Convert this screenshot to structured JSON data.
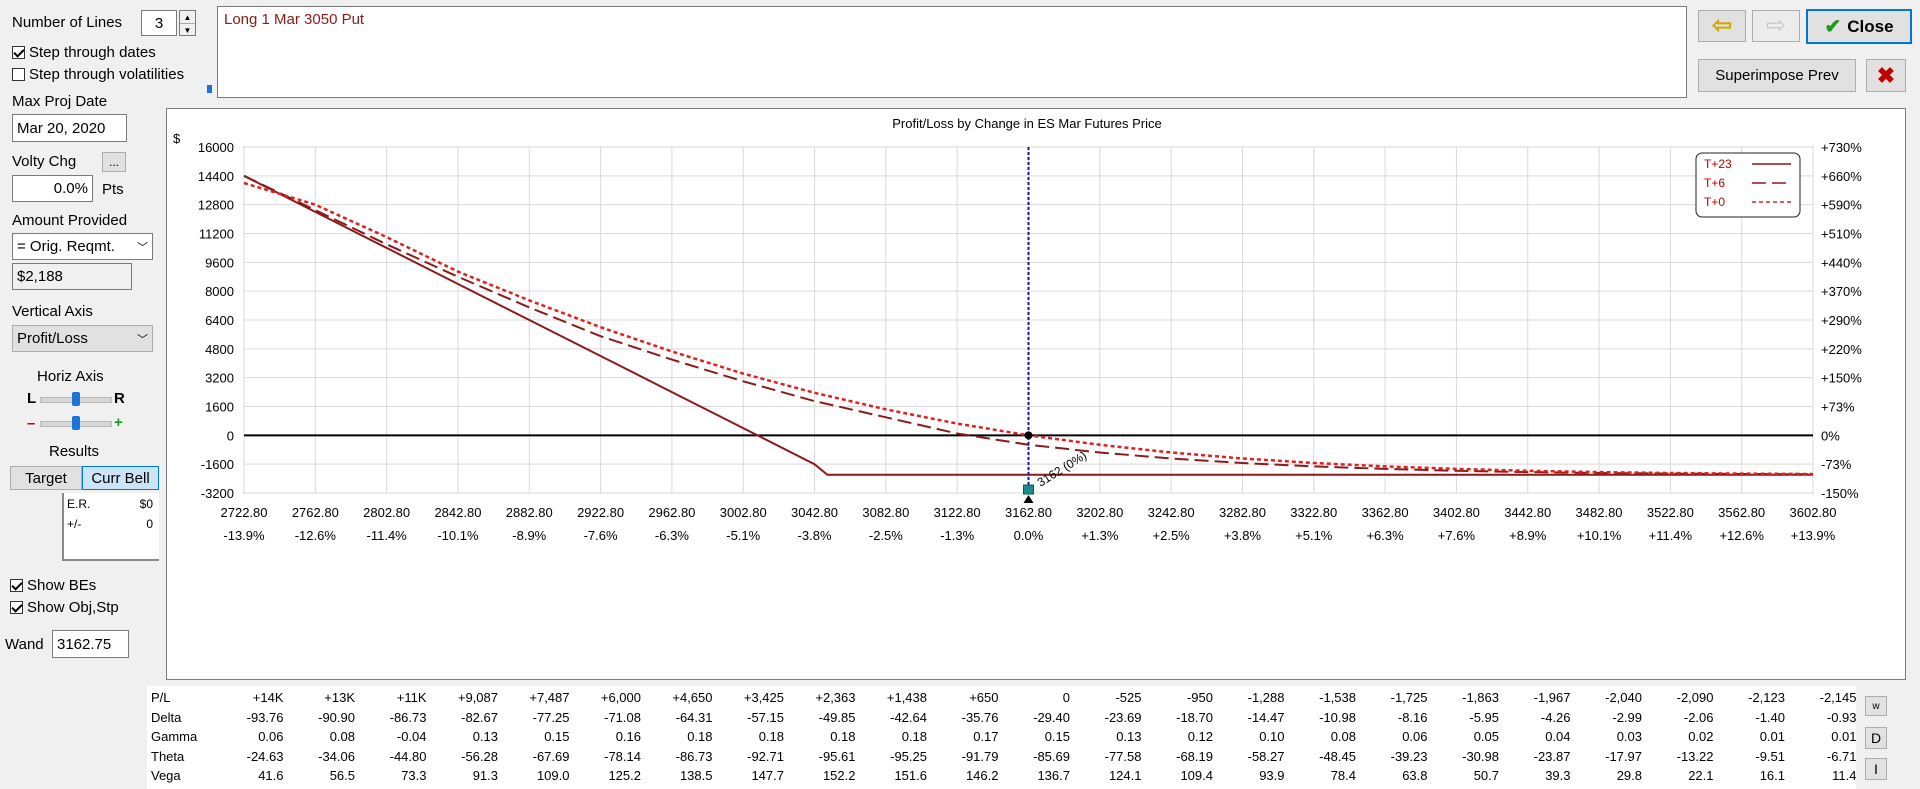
{
  "controls": {
    "number_of_lines_label": "Number of Lines",
    "number_of_lines_value": "3",
    "step_dates_label": "Step through dates",
    "step_dates_checked": true,
    "step_vols_label": "Step through volatilities",
    "step_vols_checked": false,
    "max_proj_date_label": "Max Proj Date",
    "max_proj_date_value": "Mar 20, 2020",
    "volty_chg_label": "Volty Chg",
    "volty_chg_button": "...",
    "volty_chg_value": "0.0%",
    "volty_chg_unit": "Pts",
    "amount_provided_label": "Amount Provided",
    "amount_provided_select": "= Orig. Reqmt.",
    "amount_value": "$2,188",
    "vertical_axis_label": "Vertical Axis",
    "vertical_axis_select": "Profit/Loss",
    "horiz_axis_label": "Horiz Axis",
    "horiz_l": "L",
    "horiz_r": "R",
    "horiz_minus": "–",
    "horiz_plus": "+",
    "horiz_slider_level": 0.5,
    "zoom_slider_level": 0.5,
    "results_label": "Results",
    "target_button": "Target",
    "curr_bell_button": "Curr Bell",
    "er_label": "E.R.",
    "er_value": "$0",
    "pm_label": "+/-",
    "pm_value": "0",
    "show_bes_label": "Show BEs",
    "show_bes_checked": true,
    "show_objstp_label": "Show Obj,Stp",
    "show_objstp_checked": true,
    "wand_label": "Wand",
    "wand_value": "3162.75"
  },
  "position_text": "Long 1 Mar 3050 Put",
  "toolbar": {
    "close_label": "Close",
    "superimpose_label": "Superimpose Prev"
  },
  "chart_data": {
    "type": "line",
    "title": "Profit/Loss by Change in ES Mar Futures Price",
    "ylabel": "$",
    "xlim": [
      2722.8,
      3602.8
    ],
    "ylim": [
      -3200,
      16000
    ],
    "x_ticks": [
      "2722.80",
      "2762.80",
      "2802.80",
      "2842.80",
      "2882.80",
      "2922.80",
      "2962.80",
      "3002.80",
      "3042.80",
      "3082.80",
      "3122.80",
      "3162.80",
      "3202.80",
      "3242.80",
      "3282.80",
      "3322.80",
      "3362.80",
      "3402.80",
      "3442.80",
      "3482.80",
      "3522.80",
      "3562.80",
      "3602.80"
    ],
    "x_pct_ticks": [
      "-13.9%",
      "-12.6%",
      "-11.4%",
      "-10.1%",
      "-8.9%",
      "-7.6%",
      "-6.3%",
      "-5.1%",
      "-3.8%",
      "-2.5%",
      "-1.3%",
      "0.0%",
      "+1.3%",
      "+2.5%",
      "+3.8%",
      "+5.1%",
      "+6.3%",
      "+7.6%",
      "+8.9%",
      "+10.1%",
      "+11.4%",
      "+12.6%",
      "+13.9%"
    ],
    "y_ticks": [
      16000,
      14400,
      12800,
      11200,
      9600,
      8000,
      6400,
      4800,
      3200,
      1600,
      0,
      -1600,
      -3200
    ],
    "y_right_ticks": [
      "+730%",
      "+660%",
      "+590%",
      "+510%",
      "+440%",
      "+370%",
      "+290%",
      "+220%",
      "+150%",
      "+73%",
      "0%",
      "-73%",
      "-150%"
    ],
    "grid": true,
    "legend_position": "top-right",
    "current_price": 3162.8,
    "marker_label": "3162 (0%)",
    "series": [
      {
        "name": "T+23",
        "style": "solid",
        "color": "#8b1a1a",
        "x": [
          2722.8,
          2762.8,
          2802.8,
          2842.8,
          2882.8,
          2922.8,
          2962.8,
          3002.8,
          3042.8,
          3050,
          3602.8
        ],
        "y": [
          14400,
          12400,
          10400,
          8400,
          6400,
          4400,
          2400,
          400,
          -1600,
          -2188,
          -2188
        ]
      },
      {
        "name": "T+6",
        "style": "dash",
        "color": "#8b1a1a",
        "x": [
          2722.8,
          2762.8,
          2802.8,
          2842.8,
          2882.8,
          2922.8,
          2962.8,
          3002.8,
          3042.8,
          3082.8,
          3122.8,
          3162.8,
          3202.8,
          3242.8,
          3282.8,
          3322.8,
          3362.8,
          3402.8,
          3442.8,
          3482.8,
          3522.8,
          3562.8,
          3602.8
        ],
        "y": [
          14400,
          12500,
          10600,
          8800,
          7100,
          5500,
          4200,
          3000,
          1900,
          1000,
          100,
          -525,
          -950,
          -1288,
          -1538,
          -1725,
          -1863,
          -1967,
          -2040,
          -2090,
          -2123,
          -2145,
          -2160
        ]
      },
      {
        "name": "T+0",
        "style": "dot",
        "color": "#e02020",
        "x": [
          2722.8,
          2762.8,
          2802.8,
          2842.8,
          2882.8,
          2922.8,
          2962.8,
          3002.8,
          3042.8,
          3082.8,
          3122.8,
          3162.8,
          3202.8,
          3242.8,
          3282.8,
          3322.8,
          3362.8,
          3402.8,
          3442.8,
          3482.8,
          3522.8,
          3562.8,
          3602.8
        ],
        "y": [
          14000,
          12800,
          11000,
          9087,
          7487,
          6000,
          4650,
          3425,
          2363,
          1438,
          650,
          0,
          -525,
          -950,
          -1288,
          -1538,
          -1725,
          -1863,
          -1967,
          -2040,
          -2090,
          -2123,
          -2145
        ]
      }
    ]
  },
  "legend": [
    {
      "name": "T+23",
      "sample": "———"
    },
    {
      "name": "T+6",
      "sample": "— — ·"
    },
    {
      "name": "T+0",
      "sample": "*- - - -"
    }
  ],
  "greeks_table": {
    "rows": [
      {
        "label": "P/L",
        "values": [
          "+14K",
          "+13K",
          "+11K",
          "+9,087",
          "+7,487",
          "+6,000",
          "+4,650",
          "+3,425",
          "+2,363",
          "+1,438",
          "+650",
          "0",
          "-525",
          "-950",
          "-1,288",
          "-1,538",
          "-1,725",
          "-1,863",
          "-1,967",
          "-2,040",
          "-2,090",
          "-2,123",
          "-2,145"
        ]
      },
      {
        "label": "Delta",
        "values": [
          "-93.76",
          "-90.90",
          "-86.73",
          "-82.67",
          "-77.25",
          "-71.08",
          "-64.31",
          "-57.15",
          "-49.85",
          "-42.64",
          "-35.76",
          "-29.40",
          "-23.69",
          "-18.70",
          "-14.47",
          "-10.98",
          "-8.16",
          "-5.95",
          "-4.26",
          "-2.99",
          "-2.06",
          "-1.40",
          "-0.93"
        ]
      },
      {
        "label": "Gamma",
        "values": [
          "0.06",
          "0.08",
          "-0.04",
          "0.13",
          "0.15",
          "0.16",
          "0.18",
          "0.18",
          "0.18",
          "0.18",
          "0.17",
          "0.15",
          "0.13",
          "0.12",
          "0.10",
          "0.08",
          "0.06",
          "0.05",
          "0.04",
          "0.03",
          "0.02",
          "0.01",
          "0.01"
        ]
      },
      {
        "label": "Theta",
        "values": [
          "-24.63",
          "-34.06",
          "-44.80",
          "-56.28",
          "-67.69",
          "-78.14",
          "-86.73",
          "-92.71",
          "-95.61",
          "-95.25",
          "-91.79",
          "-85.69",
          "-77.58",
          "-68.19",
          "-58.27",
          "-48.45",
          "-39.23",
          "-30.98",
          "-23.87",
          "-17.97",
          "-13.22",
          "-9.51",
          "-6.71"
        ]
      },
      {
        "label": "Vega",
        "values": [
          "41.6",
          "56.5",
          "73.3",
          "91.3",
          "109.0",
          "125.2",
          "138.5",
          "147.7",
          "152.2",
          "151.6",
          "146.2",
          "136.7",
          "124.1",
          "109.4",
          "93.9",
          "78.4",
          "63.8",
          "50.7",
          "39.3",
          "29.8",
          "22.1",
          "16.1",
          "11.4"
        ]
      }
    ],
    "side_buttons": [
      "w",
      "D",
      "I"
    ]
  }
}
